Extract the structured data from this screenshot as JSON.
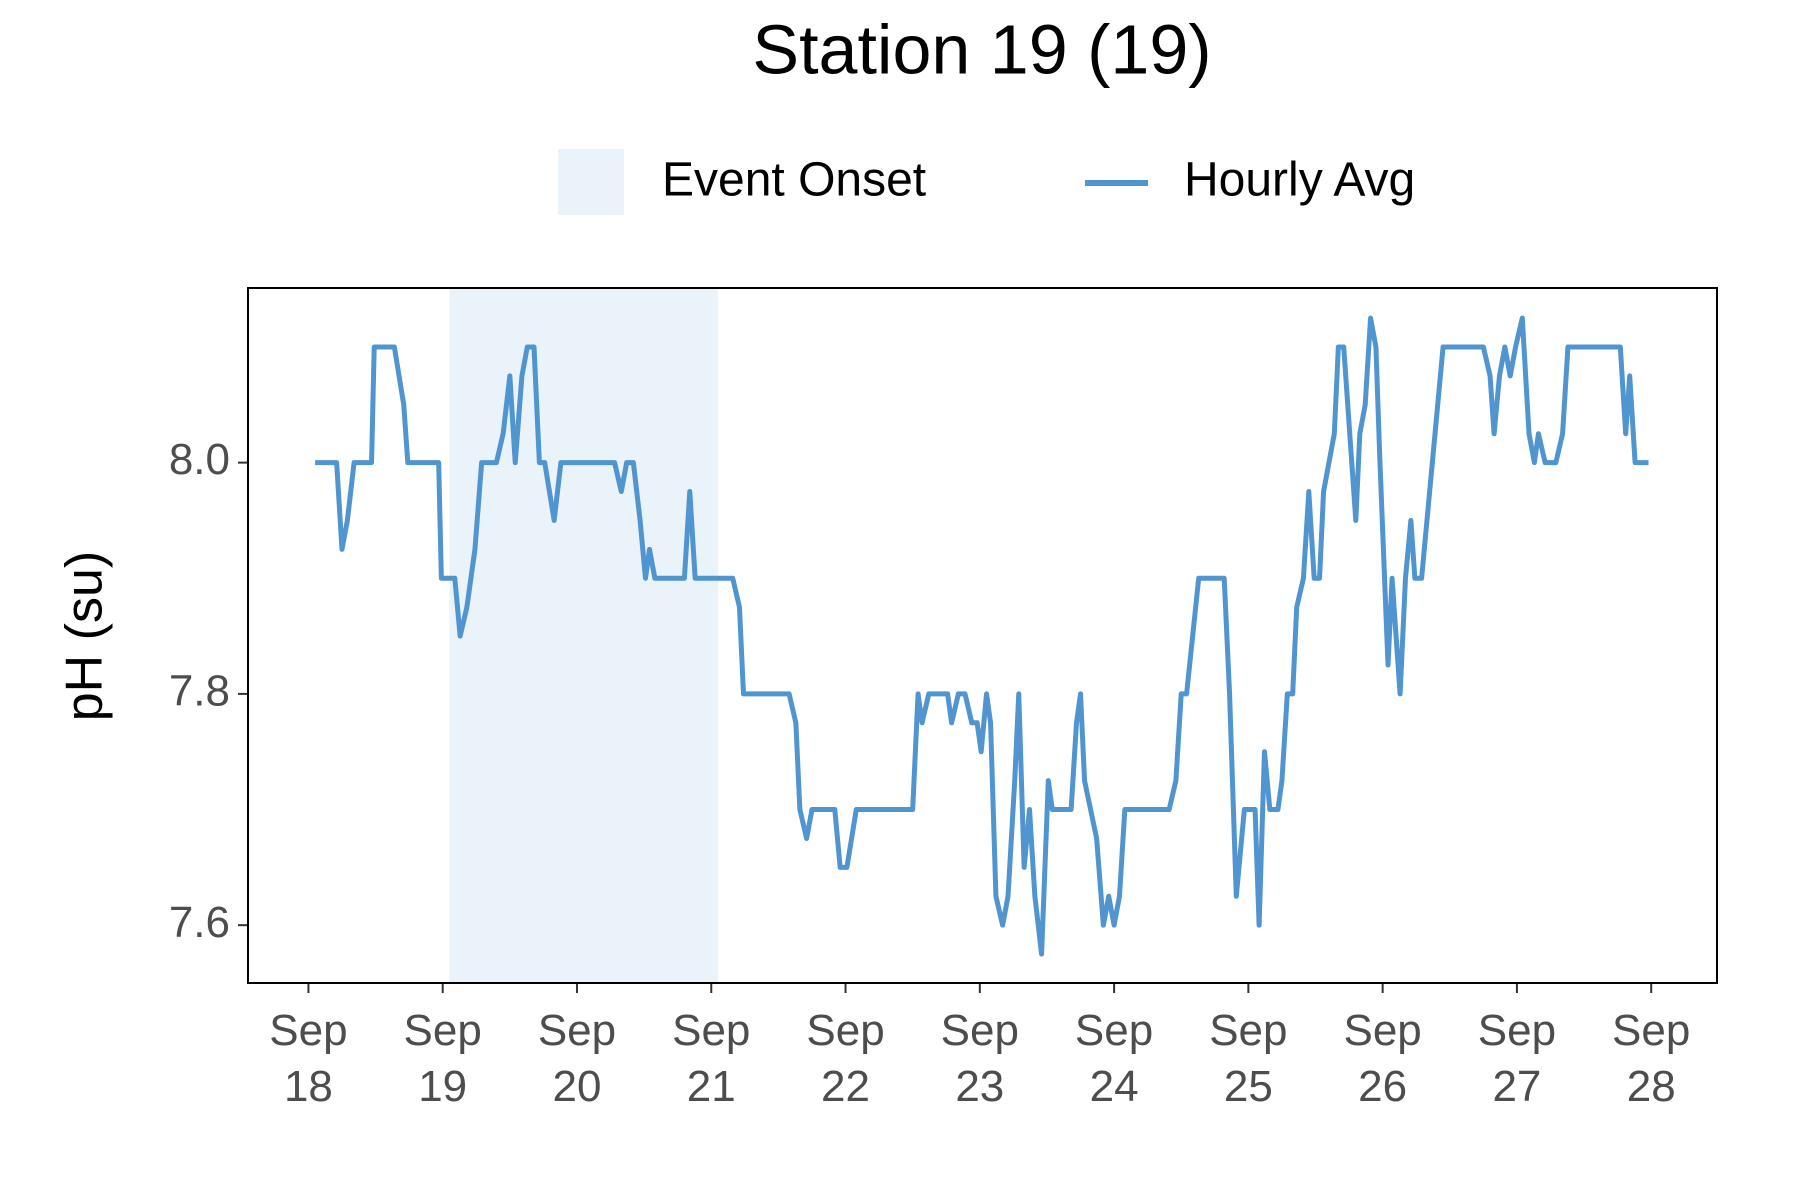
{
  "chart_data": {
    "type": "line",
    "title": "Station 19 (19)",
    "y_label": "pH (su)",
    "event": {
      "name": "Event Onset",
      "start": 19.05,
      "end": 21.05,
      "color": "#eaf2fa"
    },
    "x": [
      18.05,
      18.21,
      18.25,
      18.29,
      18.34,
      18.47,
      18.49,
      18.64,
      18.71,
      18.74,
      18.97,
      18.99,
      19.09,
      19.13,
      19.18,
      19.24,
      19.29,
      19.4,
      19.45,
      19.5,
      19.54,
      19.59,
      19.63,
      19.68,
      19.72,
      19.76,
      19.83,
      19.88,
      20.28,
      20.33,
      20.37,
      20.42,
      20.47,
      20.51,
      20.54,
      20.58,
      20.8,
      20.84,
      20.88,
      21.16,
      21.21,
      21.24,
      21.58,
      21.63,
      21.66,
      21.71,
      21.75,
      21.92,
      21.96,
      22.01,
      22.08,
      22.5,
      22.54,
      22.57,
      22.62,
      22.76,
      22.79,
      22.84,
      22.89,
      22.94,
      22.98,
      23.01,
      23.05,
      23.08,
      23.12,
      23.17,
      23.21,
      23.26,
      23.29,
      23.33,
      23.37,
      23.41,
      23.46,
      23.51,
      23.54,
      23.68,
      23.72,
      23.75,
      23.78,
      23.87,
      23.92,
      23.96,
      24.0,
      24.04,
      24.08,
      24.41,
      24.46,
      24.5,
      24.54,
      24.63,
      24.82,
      24.86,
      24.91,
      24.97,
      25.05,
      25.08,
      25.12,
      25.16,
      25.22,
      25.25,
      25.29,
      25.33,
      25.36,
      25.41,
      25.45,
      25.49,
      25.53,
      25.56,
      25.6,
      25.64,
      25.67,
      25.71,
      25.74,
      25.77,
      25.8,
      25.83,
      25.87,
      25.91,
      25.95,
      25.98,
      26.04,
      26.07,
      26.13,
      26.17,
      26.21,
      26.24,
      26.29,
      26.35,
      26.45,
      26.75,
      26.8,
      26.83,
      26.87,
      26.91,
      26.95,
      26.99,
      27.04,
      27.09,
      27.13,
      27.16,
      27.21,
      27.29,
      27.34,
      27.38,
      27.77,
      27.81,
      27.84,
      27.88,
      27.98
    ],
    "series": [
      {
        "name": "Hourly Avg",
        "color": "#5095d0",
        "values": [
          8.0,
          8.0,
          7.925,
          7.95,
          8.0,
          8.0,
          8.1,
          8.1,
          8.05,
          8.0,
          8.0,
          7.9,
          7.9,
          7.85,
          7.875,
          7.925,
          8.0,
          8.0,
          8.025,
          8.075,
          8.0,
          8.075,
          8.1,
          8.1,
          8.0,
          8.0,
          7.95,
          8.0,
          8.0,
          7.975,
          8.0,
          8.0,
          7.95,
          7.9,
          7.925,
          7.9,
          7.9,
          7.975,
          7.9,
          7.9,
          7.875,
          7.8,
          7.8,
          7.775,
          7.7,
          7.675,
          7.7,
          7.7,
          7.65,
          7.65,
          7.7,
          7.7,
          7.8,
          7.775,
          7.8,
          7.8,
          7.775,
          7.8,
          7.8,
          7.775,
          7.775,
          7.75,
          7.8,
          7.775,
          7.625,
          7.6,
          7.625,
          7.725,
          7.8,
          7.65,
          7.7,
          7.625,
          7.575,
          7.725,
          7.7,
          7.7,
          7.775,
          7.8,
          7.725,
          7.675,
          7.6,
          7.625,
          7.6,
          7.625,
          7.7,
          7.7,
          7.725,
          7.8,
          7.8,
          7.9,
          7.9,
          7.8,
          7.625,
          7.7,
          7.7,
          7.6,
          7.75,
          7.7,
          7.7,
          7.725,
          7.8,
          7.8,
          7.875,
          7.9,
          7.975,
          7.9,
          7.9,
          7.975,
          8.0,
          8.025,
          8.1,
          8.1,
          8.05,
          8.0,
          7.95,
          8.025,
          8.05,
          8.125,
          8.1,
          8.0,
          7.825,
          7.9,
          7.8,
          7.9,
          7.95,
          7.9,
          7.9,
          7.975,
          8.1,
          8.1,
          8.075,
          8.025,
          8.075,
          8.1,
          8.075,
          8.1,
          8.125,
          8.025,
          8.0,
          8.025,
          8.0,
          8.0,
          8.025,
          8.1,
          8.1,
          8.025,
          8.075,
          8.0,
          8.0
        ]
      }
    ],
    "xlim": [
      17.55,
      28.49
    ],
    "xticks": [
      {
        "value": 18,
        "label": "Sep 18"
      },
      {
        "value": 19,
        "label": "Sep 19"
      },
      {
        "value": 20,
        "label": "Sep 20"
      },
      {
        "value": 21,
        "label": "Sep 21"
      },
      {
        "value": 22,
        "label": "Sep 22"
      },
      {
        "value": 23,
        "label": "Sep 23"
      },
      {
        "value": 24,
        "label": "Sep 24"
      },
      {
        "value": 25,
        "label": "Sep 25"
      },
      {
        "value": 26,
        "label": "Sep 26"
      },
      {
        "value": 27,
        "label": "Sep 27"
      },
      {
        "value": 28,
        "label": "Sep 28"
      }
    ],
    "ylim": [
      7.55,
      8.151
    ],
    "yticks": [
      7.6,
      7.8,
      {
        "value": 8,
        "label": "8.0"
      }
    ],
    "grid": false
  }
}
